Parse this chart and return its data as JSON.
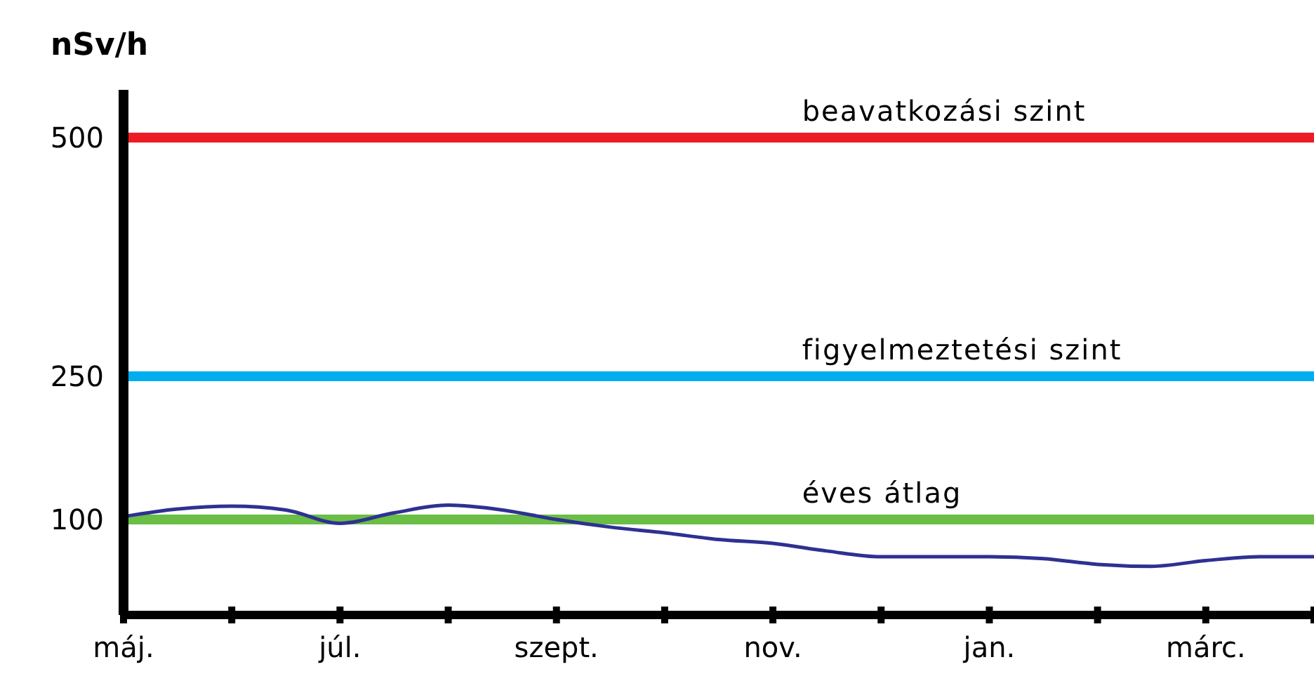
{
  "chart_data": {
    "type": "line",
    "ylabel": "nSv/h",
    "categories": [
      "máj.",
      null,
      null,
      null,
      "júl.",
      null,
      null,
      null,
      "szept.",
      null,
      null,
      null,
      "nov.",
      null,
      null,
      null,
      "jan.",
      null,
      null,
      null,
      "márc.",
      null,
      null
    ],
    "series": [
      {
        "color": "#2e3192",
        "values": [
          103,
          111,
          114,
          110,
          96,
          107,
          115,
          110,
          100,
          92,
          86,
          79,
          75,
          67,
          61,
          61,
          61,
          59,
          53,
          51,
          57,
          61,
          61
        ]
      }
    ],
    "ylim": [
      0,
      550
    ],
    "yticks": [
      100,
      250,
      500
    ],
    "ref_lines": [
      {
        "axis": "y",
        "value": 500,
        "label": "beavatkozási szint",
        "color": "#ed1c24"
      },
      {
        "axis": "y",
        "value": 250,
        "label": "figyelmeztetési szint",
        "color": "#00aeef"
      },
      {
        "axis": "y",
        "value": 100,
        "label": "éves átlag",
        "color": "#6abd45"
      }
    ],
    "grid": false,
    "legend": false,
    "marker": "none",
    "line_style": "solid"
  }
}
